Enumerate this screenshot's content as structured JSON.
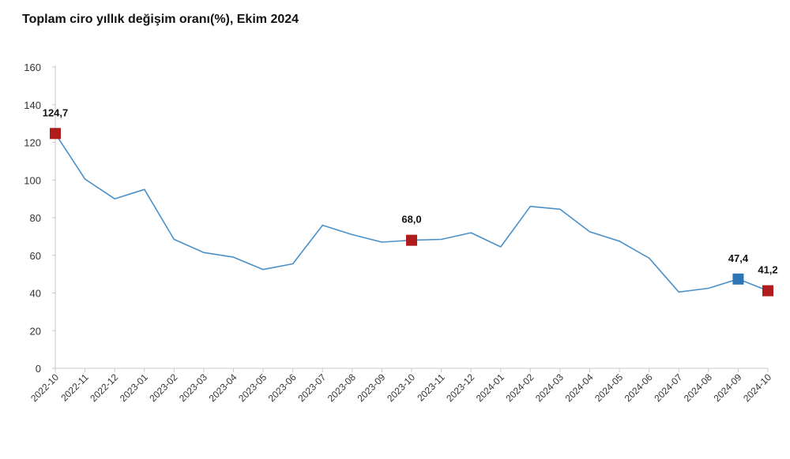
{
  "title": "Toplam ciro yıllık değişim oranı(%), Ekim 2024",
  "colors": {
    "line": "#4a90c8",
    "marker_red": "#b01c1c",
    "marker_blue": "#2e75b6",
    "axis": "#c8c8c8"
  },
  "chart_data": {
    "type": "line",
    "title": "Toplam ciro yıllık değişim oranı(%), Ekim 2024",
    "xlabel": "",
    "ylabel": "",
    "ylim": [
      0,
      160
    ],
    "yticks": [
      0,
      20,
      40,
      60,
      80,
      100,
      120,
      140,
      160
    ],
    "grid": false,
    "categories": [
      "2022-10",
      "2022-11",
      "2022-12",
      "2023-01",
      "2023-02",
      "2023-03",
      "2023-04",
      "2023-05",
      "2023-06",
      "2023-07",
      "2023-08",
      "2023-09",
      "2023-10",
      "2023-11",
      "2023-12",
      "2024-01",
      "2024-02",
      "2024-03",
      "2024-04",
      "2024-05",
      "2024-06",
      "2024-07",
      "2024-08",
      "2024-09",
      "2024-10"
    ],
    "values": [
      124.7,
      100.5,
      90.0,
      95.0,
      68.5,
      61.5,
      59.0,
      52.5,
      55.5,
      76.0,
      71.0,
      67.0,
      68.0,
      68.5,
      72.0,
      64.5,
      86.0,
      84.5,
      72.5,
      67.5,
      58.5,
      40.5,
      42.5,
      47.4,
      41.2
    ],
    "markers": [
      {
        "index": 0,
        "label": "124,7",
        "color": "red"
      },
      {
        "index": 12,
        "label": "68,0",
        "color": "red"
      },
      {
        "index": 23,
        "label": "47,4",
        "color": "blue"
      },
      {
        "index": 24,
        "label": "41,2",
        "color": "red"
      }
    ]
  }
}
